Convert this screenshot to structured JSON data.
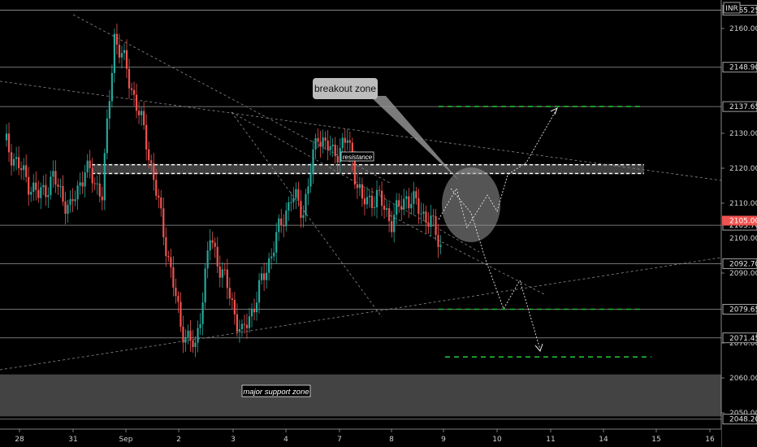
{
  "chart_data": {
    "type": "candlestick",
    "currency_badge": "INR",
    "y_axis": {
      "range": [
        2046,
        2168
      ],
      "ticks": [
        2160,
        2130,
        2120,
        2110,
        2090,
        2070,
        2060,
        2050
      ],
      "level_lines": [
        "2165.25",
        "2148.90",
        "2137.65",
        "2103.70",
        "2092.70",
        "2079.65",
        "2071.45",
        "2048.20"
      ],
      "current_price": "2105.00",
      "partial_label": "2100.00"
    },
    "x_axis": {
      "labels": [
        "28",
        "31",
        "Sep",
        "2",
        "3",
        "4",
        "7",
        "8",
        "9",
        "10",
        "11",
        "14",
        "15",
        "16"
      ]
    },
    "levels": [
      2165.25,
      2148.9,
      2137.65,
      2103.7,
      2092.7,
      2079.65,
      2071.45,
      2048.2
    ],
    "annotations": {
      "breakout_callout": "breakout zone",
      "resistance_label": "resistance",
      "support_label": "major support zone"
    },
    "zones": {
      "resistance": [
        2118.5,
        2121
      ],
      "support": [
        2049,
        2061
      ]
    },
    "targets": [
      2137.65,
      2079.65,
      2066
    ],
    "colors": {
      "up": "#26a69a",
      "down": "#ef5350",
      "target": "#22bb33",
      "price": "#ef5350"
    }
  }
}
